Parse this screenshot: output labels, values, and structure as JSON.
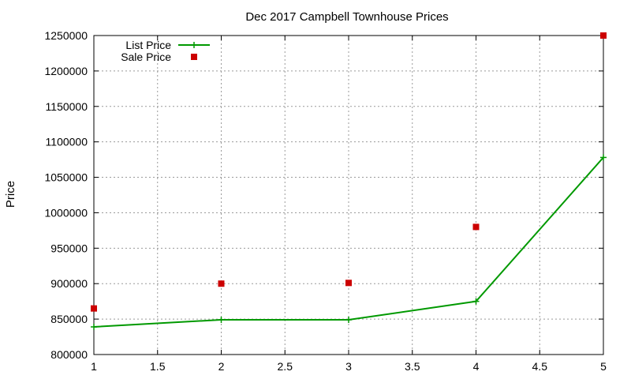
{
  "chart_data": {
    "type": "line",
    "title": "Dec 2017 Campbell Townhouse Prices",
    "xlabel": "",
    "ylabel": "Price",
    "xlim": [
      1,
      5
    ],
    "ylim": [
      800000,
      1250000
    ],
    "xticks": [
      1,
      1.5,
      2,
      2.5,
      3,
      3.5,
      4,
      4.5,
      5
    ],
    "yticks": [
      800000,
      850000,
      900000,
      950000,
      1000000,
      1050000,
      1100000,
      1150000,
      1200000,
      1250000
    ],
    "grid": true,
    "legend_position": "top-left",
    "series": [
      {
        "name": "List Price",
        "style": "linespoints",
        "color": "#009900",
        "x": [
          1,
          2,
          3,
          4,
          5
        ],
        "y": [
          839000,
          849000,
          849000,
          875000,
          1078000
        ]
      },
      {
        "name": "Sale Price",
        "style": "points",
        "color": "#cc0000",
        "x": [
          1,
          2,
          3,
          4,
          5
        ],
        "y": [
          865000,
          900000,
          901000,
          980000,
          1250000
        ]
      }
    ]
  }
}
